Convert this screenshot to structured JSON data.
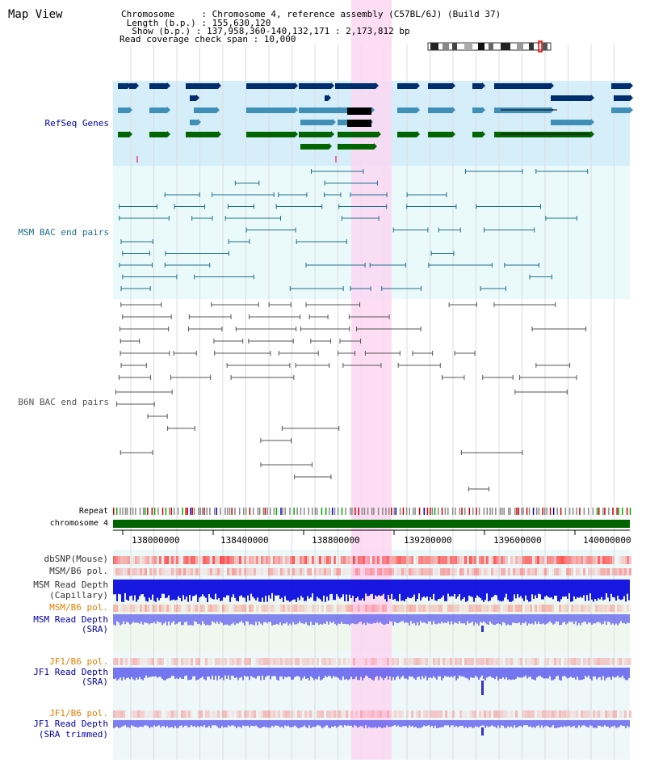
{
  "app": {
    "title": "Map View"
  },
  "info": {
    "chromosome_line": "Chromosome     : Chromosome 4, reference assembly (C57BL/6J) (Build 37)",
    "length_line": " Length (b.p.) : 155,630,120",
    "show_line": "  Show (b.p.) : 137,958,360-140,132,171 : 2,173,812 bp",
    "coverage_line": "Read coverage check span : 10,000"
  },
  "tracks": {
    "refseq": {
      "label": "RefSeq Genes",
      "color": "#0000aa",
      "bg": "#d6eefa"
    },
    "msm_bac": {
      "label": "MSM BAC end pairs",
      "color": "#1f6f8b",
      "bg": "#eafafa"
    },
    "b6n_bac": {
      "label": "B6N BAC end pairs",
      "color": "#555555",
      "bg": "#ffffff"
    },
    "repeat": {
      "label": "Repeat"
    },
    "chromosome": {
      "label": "chromosome 4",
      "color": "#006400"
    }
  },
  "axis": {
    "ticks": [
      "138000000",
      "138400000",
      "138800000",
      "139200000",
      "139600000",
      "140000000"
    ]
  },
  "lower_tracks": [
    {
      "label": "dbSNP(Mouse)",
      "color": "#333333"
    },
    {
      "label": "MSM/B6 pol.",
      "color": "#333333"
    },
    {
      "label": "MSM Read Depth",
      "color": "#333333"
    },
    {
      "label": "(Capillary)",
      "color": "#333333"
    },
    {
      "label": "MSM/B6 pol.",
      "color": "#e08000"
    },
    {
      "label": "MSM Read Depth",
      "color": "#0000aa"
    },
    {
      "label": "(SRA)",
      "color": "#0000aa"
    },
    {
      "label": "JF1/B6 pol.",
      "color": "#e08000"
    },
    {
      "label": "JF1 Read Depth",
      "color": "#0000aa"
    },
    {
      "label": "(SRA)",
      "color": "#0000aa"
    },
    {
      "label": "JF1/B6 pol.",
      "color": "#e08000"
    },
    {
      "label": "JF1 Read Depth",
      "color": "#0000aa"
    },
    {
      "label": "(SRA trimmed)",
      "color": "#0000aa"
    }
  ],
  "colors": {
    "highlight": "#fbd7f2",
    "gene_dark": "#002d6e",
    "gene_mid": "#3f8fb6",
    "gene_green": "#006400",
    "snp_red": "#ff4444",
    "depth_blue": "#0000dd"
  }
}
